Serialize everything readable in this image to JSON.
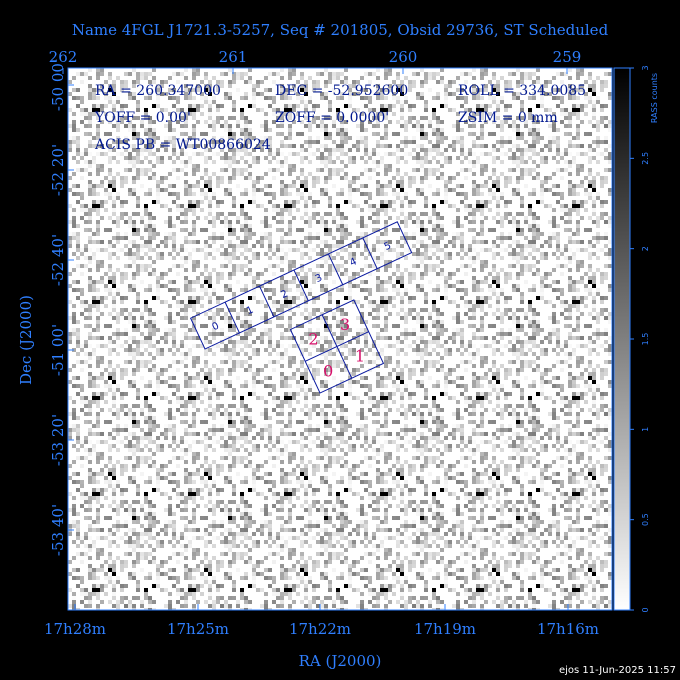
{
  "title": "Name 4FGL J1721.3-5257, Seq # 201805, Obsid 29736, ST Scheduled",
  "top_ticks": [
    "262",
    "261",
    "260",
    "259"
  ],
  "left_ticks": [
    "-50 00'",
    "-52 20'",
    "-52 40'",
    "-51 00'",
    "-53 20'",
    "-53 40'"
  ],
  "bottom_ticks": [
    "17h28m",
    "17h25m",
    "17h22m",
    "17h19m",
    "17h16m"
  ],
  "x_axis_title": "RA (J2000)",
  "y_axis_title": "Dec (J2000)",
  "info": [
    "RA = 260.347000",
    "DEC = -52.952600",
    "ROLL = 334.0085",
    "YOFF =    0.00'",
    "ZOFF =  0.0000'",
    "ZSIM = 0 mm",
    "ACIS PB = WT00866024"
  ],
  "acis_s": [
    "0",
    "1",
    "2",
    "3",
    "4",
    "5"
  ],
  "acis_i": [
    "0",
    "1",
    "2",
    "3"
  ],
  "colorbar": {
    "title": "RASS counts",
    "ticks": [
      "0",
      "0.5",
      "1",
      "1.5",
      "2",
      "2.5",
      "3"
    ]
  },
  "footer": "ejos 11-Jun-2025 11:57"
}
